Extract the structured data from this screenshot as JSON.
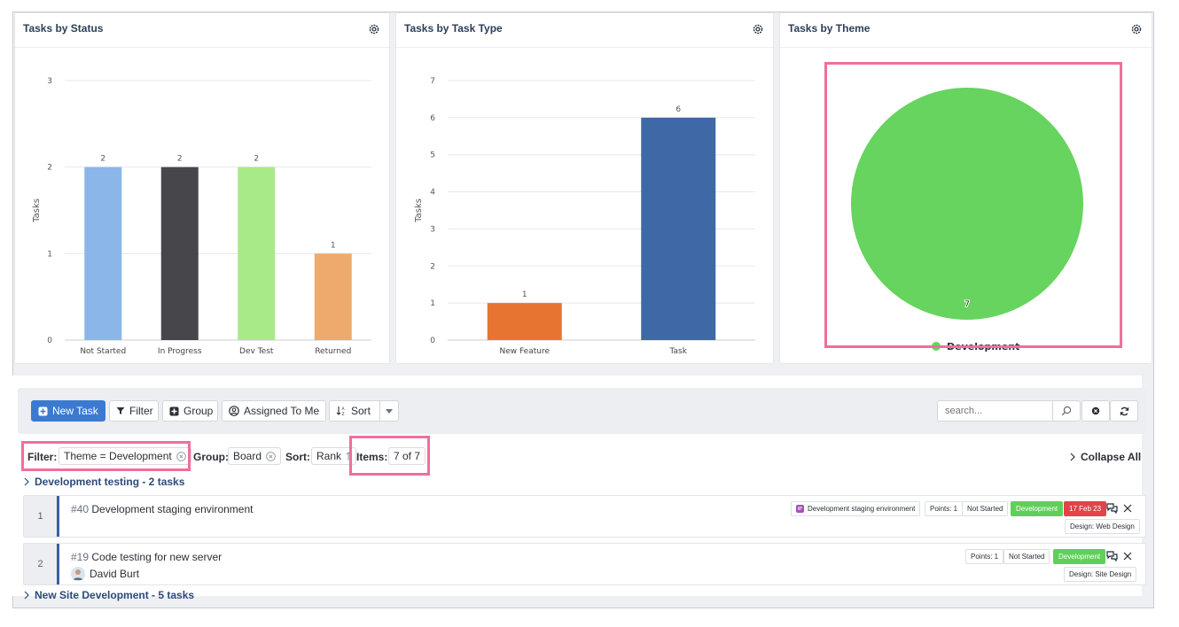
{
  "panels": [
    {
      "title": "Tasks by Status"
    },
    {
      "title": "Tasks by Task Type"
    },
    {
      "title": "Tasks by Theme"
    }
  ],
  "chart_data": [
    {
      "type": "bar",
      "title": "Tasks by Status",
      "ylabel": "Tasks",
      "ylim": [
        0,
        3
      ],
      "yticks": [
        0,
        1,
        2,
        3
      ],
      "categories": [
        "Not Started",
        "In Progress",
        "Dev Test",
        "Returned"
      ],
      "values": [
        2,
        2,
        2,
        1
      ],
      "colors": [
        "#8ab6ea",
        "#47474b",
        "#a8ea88",
        "#eeaa6c"
      ],
      "grid": true
    },
    {
      "type": "bar",
      "title": "Tasks by Task Type",
      "ylabel": "Tasks",
      "ylim": [
        0,
        7
      ],
      "yticks": [
        0,
        1,
        2,
        3,
        4,
        5,
        6,
        7
      ],
      "categories": [
        "New Feature",
        "Task"
      ],
      "values": [
        1,
        6
      ],
      "colors": [
        "#e87432",
        "#3f68a6"
      ],
      "grid": true
    },
    {
      "type": "pie",
      "title": "Tasks by Theme",
      "categories": [
        "Development"
      ],
      "values": [
        7
      ],
      "colors": [
        "#66d45e"
      ],
      "legend": "bottom"
    }
  ],
  "toolbar": {
    "new_task": "New Task",
    "filter": "Filter",
    "group": "Group",
    "assigned": "Assigned To Me",
    "sort": "Sort",
    "search_placeholder": "search..."
  },
  "filters": {
    "filter_label": "Filter:",
    "filter_value": "Theme = Development",
    "group_label": "Group:",
    "group_value": "Board",
    "sort_label": "Sort:",
    "sort_value": "Rank",
    "items_label": "Items:",
    "items_value": "7 of 7",
    "collapse_all": "Collapse All"
  },
  "groups": [
    {
      "title": "Development testing - 2 tasks"
    },
    {
      "title": "New Site Development - 5 tasks"
    }
  ],
  "tasks": [
    {
      "rank": "1",
      "num": "#40",
      "title": "Development staging environment",
      "epic": "Development staging environment",
      "points": "Points: 1",
      "status": "Not Started",
      "theme": "Development",
      "due": "17 Feb 23",
      "design": "Design: Web Design"
    },
    {
      "rank": "2",
      "num": "#19",
      "title": "Code testing for new server",
      "assignee": "David Burt",
      "points": "Points: 1",
      "status": "Not Started",
      "theme": "Development",
      "design": "Design: Site Design"
    }
  ]
}
